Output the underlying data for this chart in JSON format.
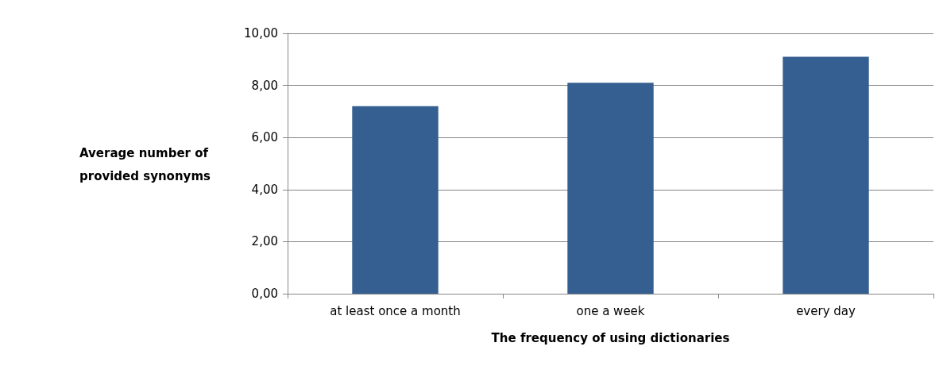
{
  "chart_data": {
    "type": "bar",
    "xlabel": "The frequency of using dictionaries",
    "ylabel": "Average number of provided synonyms",
    "categories": [
      "at least once a month",
      "one a week",
      "every day"
    ],
    "values": [
      7.2,
      8.1,
      9.1
    ],
    "color": "#355f91",
    "ylim": [
      0,
      10
    ],
    "yticks": [
      {
        "value": 0,
        "label": "0,00"
      },
      {
        "value": 2,
        "label": "2,00"
      },
      {
        "value": 4,
        "label": "4,00"
      },
      {
        "value": 6,
        "label": "6,00"
      },
      {
        "value": 8,
        "label": "8,00"
      },
      {
        "value": 10,
        "label": "10,00"
      }
    ],
    "grid": "y"
  }
}
